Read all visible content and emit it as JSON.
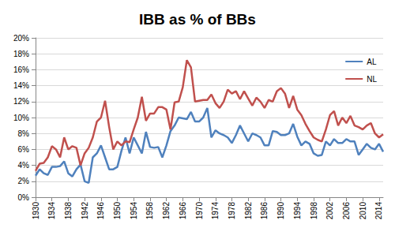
{
  "chart_data": {
    "type": "line",
    "title": "IBB as % of BBs",
    "x": [
      1930,
      1931,
      1932,
      1933,
      1934,
      1935,
      1936,
      1937,
      1938,
      1939,
      1940,
      1941,
      1942,
      1943,
      1944,
      1945,
      1946,
      1947,
      1948,
      1949,
      1950,
      1951,
      1952,
      1953,
      1954,
      1955,
      1956,
      1957,
      1958,
      1959,
      1960,
      1961,
      1962,
      1963,
      1964,
      1965,
      1966,
      1967,
      1968,
      1969,
      1970,
      1971,
      1972,
      1973,
      1974,
      1975,
      1976,
      1977,
      1978,
      1979,
      1980,
      1981,
      1982,
      1983,
      1984,
      1985,
      1986,
      1987,
      1988,
      1989,
      1990,
      1991,
      1992,
      1993,
      1994,
      1995,
      1996,
      1997,
      1998,
      1999,
      2000,
      2001,
      2002,
      2003,
      2004,
      2005,
      2006,
      2007,
      2008,
      2009,
      2010,
      2011,
      2012,
      2013,
      2014,
      2015
    ],
    "series": [
      {
        "name": "AL",
        "color": "#4f81bd",
        "values": [
          2.7,
          3.5,
          3.0,
          2.8,
          3.8,
          3.8,
          3.9,
          4.5,
          3.0,
          2.6,
          3.5,
          4.1,
          2.0,
          1.8,
          5.0,
          5.5,
          6.5,
          5.0,
          3.5,
          3.5,
          3.8,
          5.8,
          7.5,
          5.5,
          7.5,
          6.5,
          5.5,
          8.2,
          6.3,
          6.2,
          6.3,
          5.0,
          6.5,
          8.3,
          9.0,
          10.0,
          9.9,
          9.8,
          10.7,
          9.5,
          9.5,
          10.0,
          11.2,
          7.5,
          8.4,
          8.0,
          7.8,
          7.5,
          6.8,
          7.8,
          9.0,
          8.0,
          7.0,
          8.0,
          7.8,
          7.5,
          6.5,
          6.5,
          8.3,
          8.2,
          7.8,
          7.8,
          8.0,
          9.2,
          7.6,
          6.5,
          7.0,
          6.7,
          5.5,
          5.2,
          5.3,
          7.0,
          6.5,
          7.3,
          6.8,
          6.8,
          7.3,
          7.0,
          7.0,
          5.3,
          6.0,
          6.7,
          6.2,
          6.0,
          6.7,
          5.7
        ]
      },
      {
        "name": "NL",
        "color": "#c0504d",
        "values": [
          3.3,
          4.2,
          4.3,
          5.0,
          6.4,
          6.0,
          5.0,
          7.5,
          6.0,
          6.4,
          6.2,
          4.0,
          5.5,
          6.2,
          7.5,
          9.5,
          10.0,
          12.1,
          8.8,
          6.0,
          7.0,
          6.5,
          7.0,
          6.9,
          8.5,
          10.0,
          12.6,
          9.6,
          10.5,
          10.5,
          11.3,
          11.3,
          11.0,
          8.5,
          11.9,
          12.0,
          13.8,
          17.2,
          16.3,
          12.0,
          12.1,
          12.2,
          12.2,
          12.9,
          11.8,
          11.2,
          12.0,
          13.5,
          13.0,
          13.3,
          12.3,
          13.3,
          12.4,
          11.5,
          12.5,
          12.0,
          11.2,
          12.2,
          12.0,
          13.3,
          13.7,
          13.0,
          11.2,
          12.7,
          11.0,
          10.3,
          9.2,
          8.3,
          7.5,
          7.2,
          7.0,
          8.5,
          10.3,
          10.8,
          9.0,
          10.0,
          9.3,
          10.2,
          9.0,
          8.8,
          8.5,
          9.0,
          9.3,
          8.0,
          7.5,
          7.9
        ]
      }
    ],
    "xlim": [
      1930,
      2015
    ],
    "xticks": [
      1930,
      1934,
      1938,
      1942,
      1946,
      1950,
      1954,
      1958,
      1962,
      1966,
      1970,
      1974,
      1978,
      1982,
      1986,
      1990,
      1994,
      1998,
      2002,
      2006,
      2010,
      2014
    ],
    "ylim": [
      0,
      20
    ],
    "yticks": [
      {
        "value": 0,
        "label": "0%"
      },
      {
        "value": 2,
        "label": "2%"
      },
      {
        "value": 4,
        "label": "4%"
      },
      {
        "value": 6,
        "label": "6%"
      },
      {
        "value": 8,
        "label": "8%"
      },
      {
        "value": 10,
        "label": "10%"
      },
      {
        "value": 12,
        "label": "12%"
      },
      {
        "value": 14,
        "label": "14%"
      },
      {
        "value": 16,
        "label": "16%"
      },
      {
        "value": 18,
        "label": "18%"
      },
      {
        "value": 20,
        "label": "20%"
      }
    ],
    "grid": true,
    "legend": "top-right",
    "marker": "none"
  }
}
